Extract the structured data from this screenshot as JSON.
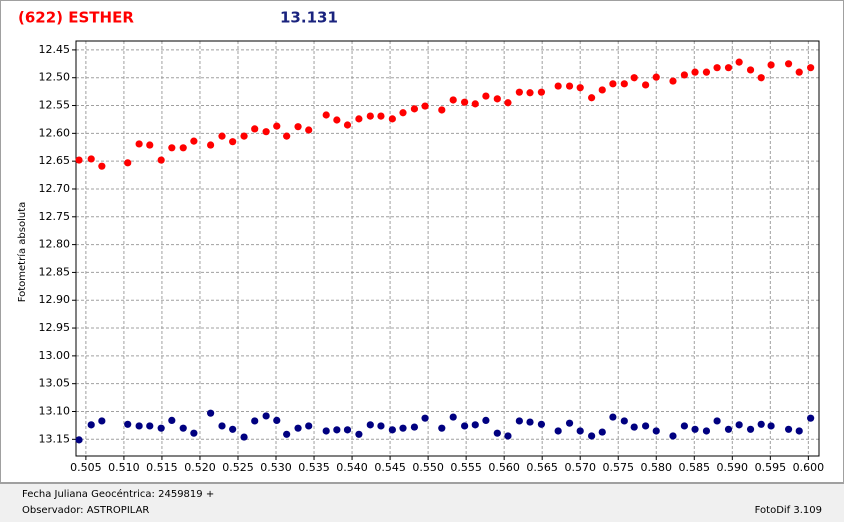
{
  "chart_data": {
    "type": "scatter",
    "title": "(622) ESTHER",
    "subtitle": "13.131",
    "y_label": "Fotometría absoluta",
    "footer": {
      "x_label": "Fecha Juliana Geocéntrica: 2459819 +",
      "observer": "Observador: ASTROPILAR",
      "software": "FotoDif 3.109"
    },
    "x": [
      0.5041,
      0.5057,
      0.5071,
      0.5105,
      0.512,
      0.5134,
      0.5149,
      0.5163,
      0.5178,
      0.5192,
      0.5214,
      0.5229,
      0.5243,
      0.5258,
      0.5272,
      0.5287,
      0.5301,
      0.5314,
      0.5329,
      0.5343,
      0.5366,
      0.538,
      0.5394,
      0.5409,
      0.5424,
      0.5438,
      0.5453,
      0.5467,
      0.5482,
      0.5496,
      0.5518,
      0.5533,
      0.5548,
      0.5562,
      0.5576,
      0.5591,
      0.5605,
      0.562,
      0.5634,
      0.5649,
      0.5671,
      0.5686,
      0.57,
      0.5715,
      0.5729,
      0.5743,
      0.5758,
      0.5771,
      0.5786,
      0.58,
      0.5822,
      0.5837,
      0.5851,
      0.5866,
      0.588,
      0.5895,
      0.5909,
      0.5924,
      0.5938,
      0.5951,
      0.5974,
      0.5988,
      0.6003
    ],
    "series": [
      {
        "color": "#ff0000",
        "values": [
          12.648,
          12.646,
          12.659,
          12.653,
          12.619,
          12.621,
          12.648,
          12.626,
          12.626,
          12.614,
          12.621,
          12.605,
          12.615,
          12.605,
          12.592,
          12.597,
          12.587,
          12.605,
          12.588,
          12.594,
          12.567,
          12.576,
          12.585,
          12.574,
          12.569,
          12.569,
          12.574,
          12.563,
          12.556,
          12.551,
          12.558,
          12.54,
          12.544,
          12.547,
          12.533,
          12.538,
          12.545,
          12.526,
          12.527,
          12.526,
          12.515,
          12.515,
          12.518,
          12.536,
          12.522,
          12.511,
          12.511,
          12.5,
          12.513,
          12.499,
          12.506,
          12.495,
          12.49,
          12.49,
          12.482,
          12.482,
          12.472,
          12.486,
          12.5,
          12.477,
          12.475,
          12.49,
          12.482
        ]
      },
      {
        "color": "#000080",
        "values": [
          13.151,
          13.124,
          13.117,
          13.123,
          13.126,
          13.126,
          13.13,
          13.116,
          13.13,
          13.139,
          13.103,
          13.126,
          13.132,
          13.146,
          13.117,
          13.108,
          13.116,
          13.141,
          13.13,
          13.126,
          13.135,
          13.133,
          13.133,
          13.141,
          13.124,
          13.126,
          13.133,
          13.13,
          13.128,
          13.112,
          13.13,
          13.11,
          13.126,
          13.124,
          13.116,
          13.139,
          13.144,
          13.117,
          13.119,
          13.123,
          13.135,
          13.121,
          13.135,
          13.144,
          13.137,
          13.11,
          13.117,
          13.128,
          13.126,
          13.135,
          13.144,
          13.126,
          13.132,
          13.135,
          13.117,
          13.132,
          13.124,
          13.132,
          13.123,
          13.126,
          13.132,
          13.135,
          13.112
        ]
      }
    ],
    "xlim": [
      0.5037,
      0.6014
    ],
    "ylim": [
      12.434,
      13.18
    ],
    "y_reversed": true,
    "grid": true,
    "xticks": [
      0.505,
      {
        "value": 0.51,
        "label": "0.510"
      },
      0.515,
      {
        "value": 0.52,
        "label": "0.520"
      },
      0.525,
      {
        "value": 0.53,
        "label": "0.530"
      },
      0.535,
      {
        "value": 0.54,
        "label": "0.540"
      },
      0.545,
      {
        "value": 0.55,
        "label": "0.550"
      },
      0.555,
      {
        "value": 0.56,
        "label": "0.560"
      },
      0.565,
      {
        "value": 0.57,
        "label": "0.570"
      },
      0.575,
      {
        "value": 0.58,
        "label": "0.580"
      },
      0.585,
      {
        "value": 0.59,
        "label": "0.590"
      },
      0.595,
      {
        "value": 0.6,
        "label": "0.600"
      }
    ],
    "yticks": [
      12.45,
      {
        "value": 12.5,
        "label": "12.50"
      },
      12.55,
      {
        "value": 12.6,
        "label": "12.60"
      },
      12.65,
      {
        "value": 12.7,
        "label": "12.70"
      },
      12.75,
      {
        "value": 12.8,
        "label": "12.80"
      },
      12.85,
      {
        "value": 12.9,
        "label": "12.90"
      },
      12.95,
      {
        "value": 13,
        "label": "13.00"
      },
      13.05,
      {
        "value": 13.1,
        "label": "13.10"
      },
      13.15
    ]
  }
}
